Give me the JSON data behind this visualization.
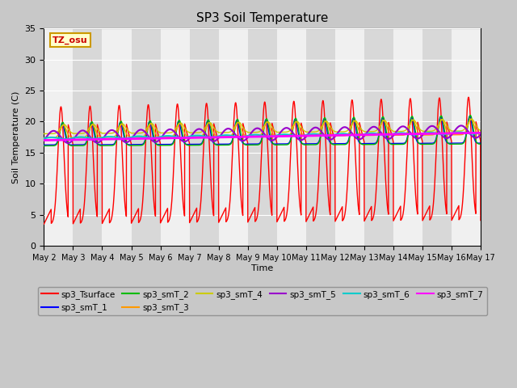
{
  "title": "SP3 Soil Temperature",
  "xlabel": "Time",
  "ylabel": "Soil Temperature (C)",
  "annotation": "TZ_osu",
  "ylim": [
    0,
    35
  ],
  "n_days": 15,
  "x_tick_labels": [
    "May 2",
    "May 3",
    "May 4",
    "May 5",
    "May 6",
    "May 7",
    "May 8",
    "May 9",
    "May 10",
    "May 11",
    "May 12",
    "May 13",
    "May 14",
    "May 15",
    "May 16",
    "May 17"
  ],
  "series_colors": {
    "sp3_Tsurface": "#ff0000",
    "sp3_smT_1": "#0000ff",
    "sp3_smT_2": "#00bb00",
    "sp3_smT_3": "#ff9900",
    "sp3_smT_4": "#cccc00",
    "sp3_smT_5": "#9900cc",
    "sp3_smT_6": "#00cccc",
    "sp3_smT_7": "#ff00ff"
  },
  "fig_bg": "#c8c8c8",
  "plot_bg": "#f0f0f0",
  "grid_color": "#ffffff"
}
